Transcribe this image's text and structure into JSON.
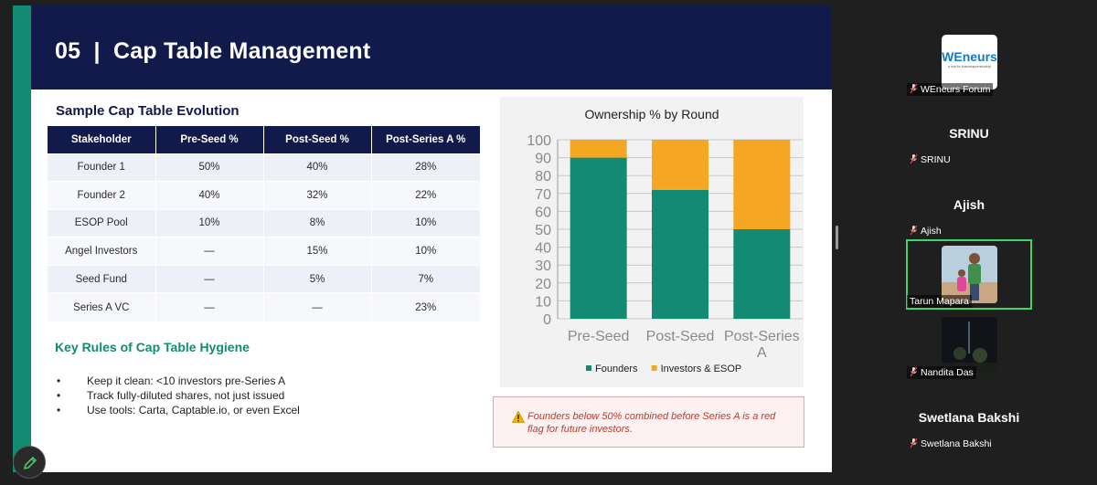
{
  "slide": {
    "title": "05  |  Cap Table Management",
    "table_section_title": "Sample Cap Table Evolution",
    "table": {
      "headers": [
        "Stakeholder",
        "Pre-Seed %",
        "Post-Seed %",
        "Post-Series A %"
      ],
      "rows": [
        [
          "Founder 1",
          "50%",
          "40%",
          "28%"
        ],
        [
          "Founder 2",
          "40%",
          "32%",
          "22%"
        ],
        [
          "ESOP Pool",
          "10%",
          "8%",
          "10%"
        ],
        [
          "Angel Investors",
          "—",
          "15%",
          "10%"
        ],
        [
          "Seed Fund",
          "—",
          "5%",
          "7%"
        ],
        [
          "Series A VC",
          "—",
          "—",
          "23%"
        ]
      ]
    },
    "rules_title": "Key Rules of Cap Table Hygiene",
    "rules": [
      "Keep it clean: <10 investors pre-Series A",
      "Track fully-diluted shares, not just issued",
      "Use tools: Carta, Captable.io, or even Excel"
    ],
    "warning": "Founders below 50% combined before Series A is a red flag for future investors.",
    "warning_icon": "warning-icon"
  },
  "chart_data": {
    "type": "bar",
    "stacked": true,
    "title": "Ownership % by Round",
    "categories": [
      "Pre-Seed",
      "Post-Seed",
      "Post-Series A"
    ],
    "category_lines": [
      [
        "Pre-Seed"
      ],
      [
        "Post-Seed"
      ],
      [
        "Post-Series",
        "A"
      ]
    ],
    "series": [
      {
        "name": "Founders",
        "values": [
          90,
          72,
          50
        ],
        "color": "#138a72"
      },
      {
        "name": "Investors & ESOP",
        "values": [
          10,
          28,
          50
        ],
        "color": "#f5a623"
      }
    ],
    "ylim": [
      0,
      100
    ],
    "yticks": [
      0,
      10,
      20,
      30,
      40,
      50,
      60,
      70,
      80,
      90,
      100
    ],
    "grid": true,
    "legend": "bottom",
    "xlabel": "",
    "ylabel": ""
  },
  "participants": [
    {
      "name": "",
      "label": "WEneurs Forum",
      "logo_text": "WEneurs",
      "logo_sub": "a hub for businesspreneurship"
    },
    {
      "name": "SRINU",
      "label": "SRINU"
    },
    {
      "name": "Ajish",
      "label": "Ajish"
    },
    {
      "name": "",
      "label": "Tarun Mapara",
      "active": true
    },
    {
      "name": "",
      "label": "Nandita Das"
    },
    {
      "name": "Swetlana Bakshi",
      "label": "Swetlana Bakshi"
    }
  ],
  "colors": {
    "navy": "#111a4b",
    "teal": "#138a72",
    "orange": "#f5a623",
    "active_border": "#3dd66a",
    "mic_muted": "#e03b3b"
  },
  "icons": {
    "pen": "pen-icon",
    "mic": "mic-muted-icon"
  }
}
